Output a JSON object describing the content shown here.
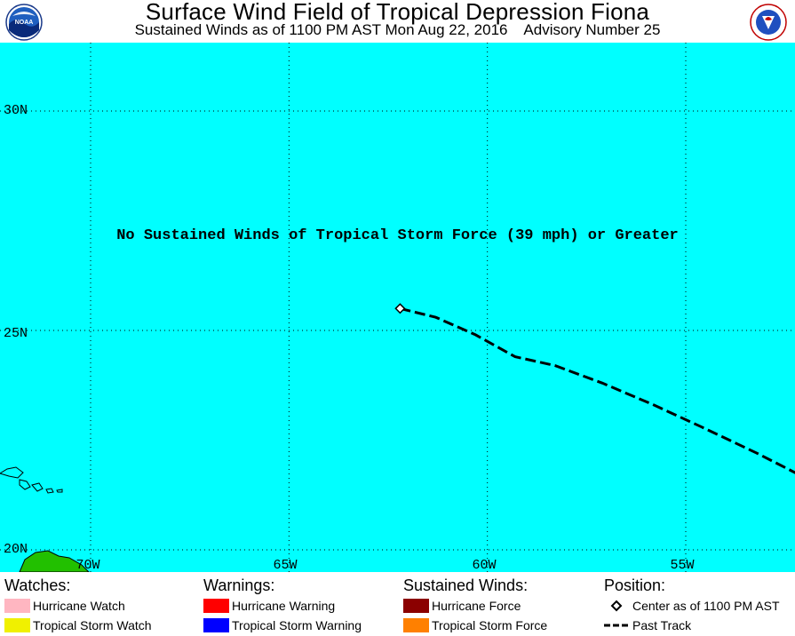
{
  "header": {
    "title": "Surface Wind Field of Tropical Depression Fiona",
    "subtitle": "Sustained Winds as of 1100 PM AST Mon Aug 22, 2016    Advisory Number 25",
    "left_logo_text": "NOAA",
    "right_logo_text": "National Weather Service"
  },
  "map": {
    "background_color": "#00ffff",
    "message": "No Sustained Winds of Tropical Storm Force (39 mph) or Greater",
    "lat_labels": [
      "30N",
      "25N",
      "20N"
    ],
    "lon_labels": [
      "70W",
      "65W",
      "60W",
      "55W"
    ],
    "latitude_lines": [
      30,
      25,
      20
    ],
    "longitude_lines": [
      70,
      65,
      60,
      55
    ],
    "storm_center": {
      "lat": 25.5,
      "lon": -62.2
    },
    "past_track": [
      {
        "lat": 25.5,
        "lon": -62.2
      },
      {
        "lat": 25.3,
        "lon": -61.3
      },
      {
        "lat": 24.9,
        "lon": -60.3
      },
      {
        "lat": 24.4,
        "lon": -59.3
      },
      {
        "lat": 24.2,
        "lon": -58.3
      },
      {
        "lat": 23.8,
        "lon": -57.1
      },
      {
        "lat": 23.3,
        "lon": -55.8
      },
      {
        "lat": 22.8,
        "lon": -54.6
      },
      {
        "lat": 22.2,
        "lon": -53.2
      },
      {
        "lat": 21.6,
        "lon": -51.9
      }
    ]
  },
  "legend": {
    "watches": {
      "heading": "Watches:",
      "items": [
        {
          "label": "Hurricane Watch",
          "color": "#ffb6c1"
        },
        {
          "label": "Tropical Storm Watch",
          "color": "#f0f000"
        }
      ]
    },
    "warnings": {
      "heading": "Warnings:",
      "items": [
        {
          "label": "Hurricane Warning",
          "color": "#ff0000"
        },
        {
          "label": "Tropical Storm Warning",
          "color": "#0000ff"
        }
      ]
    },
    "sustained_winds": {
      "heading": "Sustained Winds:",
      "items": [
        {
          "label": "Hurricane Force",
          "color": "#8b0000"
        },
        {
          "label": "Tropical Storm Force",
          "color": "#ff8000"
        }
      ]
    },
    "position": {
      "heading": "Position:",
      "items": [
        {
          "label": "Center as of 1100 PM AST",
          "icon": "diamond-icon"
        },
        {
          "label": "Past Track",
          "icon": "dashed-line-icon"
        }
      ]
    }
  }
}
